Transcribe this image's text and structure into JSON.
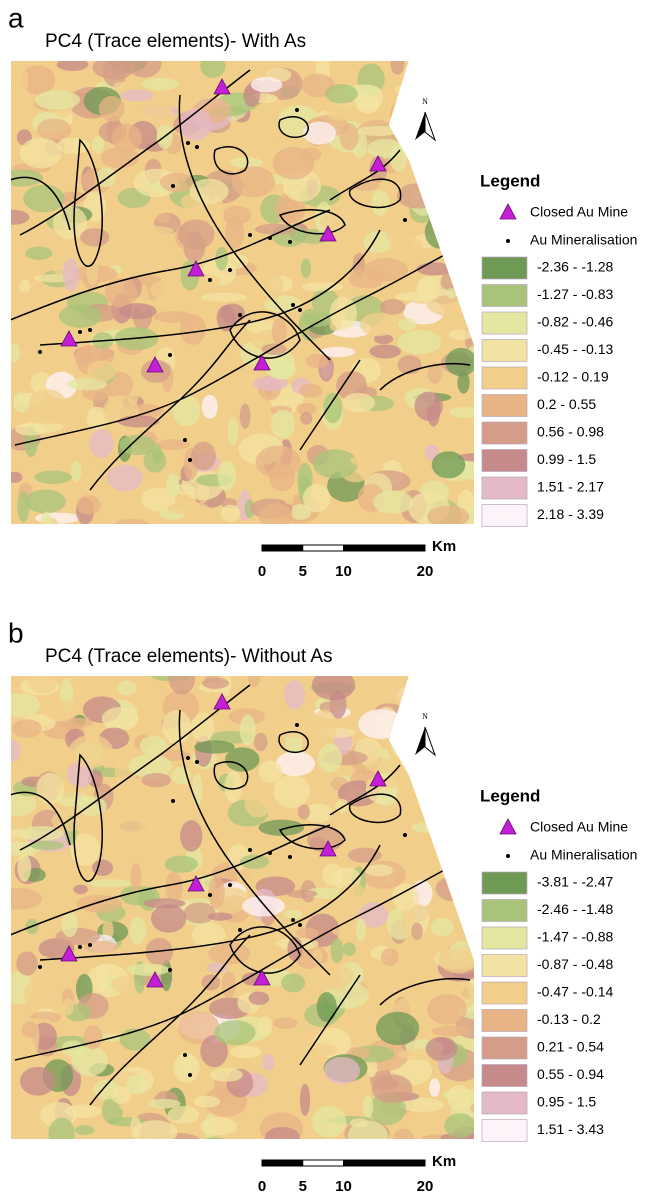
{
  "panels": [
    {
      "label": "a",
      "title": "PC4 (Trace elements)- With As",
      "north": "N",
      "legend": {
        "title": "Legend",
        "symbols": [
          "Closed Au Mine",
          "Au Mineralisation"
        ],
        "classes": [
          {
            "label": "-2.36 - -1.28",
            "color": "#6e9a56"
          },
          {
            "label": "-1.27 - -0.83",
            "color": "#a8c47a"
          },
          {
            "label": "-0.82 - -0.46",
            "color": "#e4e7a2"
          },
          {
            "label": "-0.45 - -0.13",
            "color": "#f3e3a2"
          },
          {
            "label": "-0.12 - 0.19",
            "color": "#f1cf8b"
          },
          {
            "label": "0.2 - 0.55",
            "color": "#e8b485"
          },
          {
            "label": "0.56 - 0.98",
            "color": "#d49d87"
          },
          {
            "label": "0.99 - 1.5",
            "color": "#c68a8a"
          },
          {
            "label": "1.51 - 2.17",
            "color": "#e5bac8"
          },
          {
            "label": "2.18 - 3.39",
            "color": "#fdf3f8"
          }
        ]
      },
      "scale": {
        "ticks": [
          0,
          5,
          10,
          20
        ],
        "unit": "Km"
      }
    },
    {
      "label": "b",
      "title": "PC4 (Trace elements)- Without As",
      "north": "N",
      "legend": {
        "title": "Legend",
        "symbols": [
          "Closed Au Mine",
          "Au Mineralisation"
        ],
        "classes": [
          {
            "label": "-3.81 - -2.47",
            "color": "#6e9a56"
          },
          {
            "label": "-2.46 - -1.48",
            "color": "#a8c47a"
          },
          {
            "label": "-1.47 - -0.88",
            "color": "#e4e7a2"
          },
          {
            "label": "-0.87 - -0.48",
            "color": "#f3e3a2"
          },
          {
            "label": "-0.47 - -0.14",
            "color": "#f1cf8b"
          },
          {
            "label": "-0.13 - 0.2",
            "color": "#e8b485"
          },
          {
            "label": "0.21 - 0.54",
            "color": "#d49d87"
          },
          {
            "label": "0.55 - 0.94",
            "color": "#c68a8a"
          },
          {
            "label": "0.95 - 1.5",
            "color": "#e5bac8"
          },
          {
            "label": "1.51 - 3.43",
            "color": "#fdf3f8"
          }
        ]
      },
      "scale": {
        "ticks": [
          0,
          5,
          10,
          20
        ],
        "unit": "Km"
      }
    }
  ]
}
